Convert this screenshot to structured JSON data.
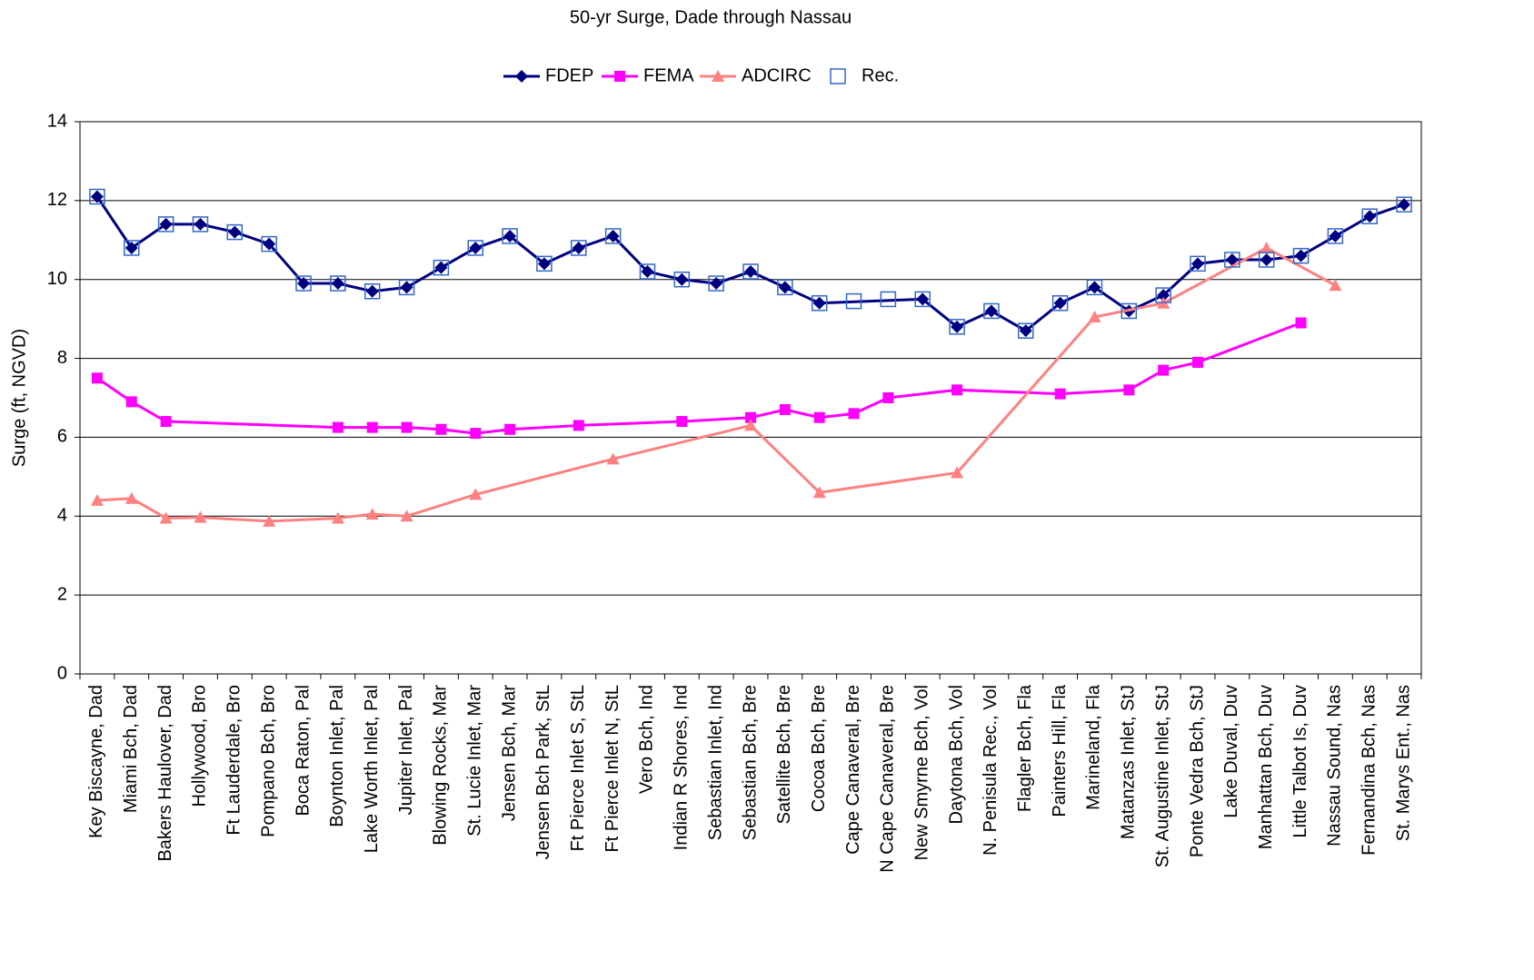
{
  "chart_data": {
    "type": "line",
    "title": "50-yr Surge, Dade through Nassau",
    "y_label": "Surge (ft, NGVD)",
    "categories": [
      "Key Biscayne, Dad",
      "Miami Bch, Dad",
      "Bakers Haulover, Dad",
      "Hollywood, Bro",
      "Ft Lauderdale, Bro",
      "Pompano Bch, Bro",
      "Boca Raton, Pal",
      "Boynton Inlet, Pal",
      "Lake Worth Inlet, Pal",
      "Jupiter Inlet, Pal",
      "Blowing Rocks, Mar",
      "St. Lucie Inlet, Mar",
      "Jensen Bch, Mar",
      "Jensen Bch Park, StL",
      "Ft Pierce Inlet S, StL",
      "Ft Pierce Inlet N, StL",
      "Vero Bch, Ind",
      "Indian R Shores, Ind",
      "Sebastian Inlet, Ind",
      "Sebastian Bch, Bre",
      "Satellite Bch, Bre",
      "Cocoa Bch, Bre",
      "Cape Canaveral, Bre",
      "N Cape Canaveral, Bre",
      "New Smyrne Bch, Vol",
      "Daytona Bch, Vol",
      "N. Penisula Rec., Vol",
      "Flagler Bch, Fla",
      "Painters Hill, Fla",
      "Marineland, Fla",
      "Matanzas Inlet, StJ",
      "St. Augustine Inlet, StJ",
      "Ponte Vedra Bch, StJ",
      "Lake Duval, Duv",
      "Manhattan Bch, Duv",
      "Little Talbot Is, Duv",
      "Nassau Sound, Nas",
      "Fernandina Bch, Nas",
      "St. Marys Ent., Nas"
    ],
    "series": [
      {
        "name": "FDEP",
        "color": "#000080",
        "marker": "diamond",
        "line": true,
        "values": [
          12.1,
          10.8,
          11.4,
          11.4,
          11.2,
          10.9,
          9.9,
          9.9,
          9.7,
          9.8,
          10.3,
          10.8,
          11.1,
          10.4,
          10.8,
          11.1,
          10.2,
          10.0,
          9.9,
          10.2,
          9.8,
          9.4,
          null,
          null,
          9.5,
          8.8,
          9.2,
          8.7,
          9.4,
          9.8,
          9.2,
          9.6,
          10.4,
          10.5,
          10.5,
          10.6,
          11.1,
          11.6,
          11.9
        ]
      },
      {
        "name": "FEMA",
        "color": "#ff00ff",
        "marker": "square",
        "line": true,
        "values": [
          7.5,
          6.9,
          6.4,
          null,
          null,
          null,
          null,
          6.25,
          6.25,
          6.25,
          6.2,
          6.1,
          6.2,
          null,
          6.3,
          null,
          null,
          6.4,
          null,
          6.5,
          6.7,
          6.5,
          6.6,
          7.0,
          null,
          7.2,
          null,
          null,
          7.1,
          null,
          7.2,
          7.7,
          7.9,
          null,
          null,
          8.9,
          null,
          null,
          null
        ]
      },
      {
        "name": "ADCIRC",
        "color": "#ff8080",
        "marker": "triangle",
        "line": true,
        "values": [
          4.4,
          4.45,
          3.95,
          3.97,
          null,
          3.87,
          null,
          3.95,
          4.05,
          4.0,
          null,
          4.55,
          null,
          null,
          null,
          5.45,
          null,
          null,
          null,
          6.3,
          null,
          4.6,
          null,
          null,
          null,
          5.1,
          null,
          null,
          null,
          9.05,
          null,
          9.4,
          null,
          null,
          10.8,
          null,
          9.85,
          null,
          null
        ]
      },
      {
        "name": "Rec.",
        "color": "#3366cc",
        "marker": "open-square",
        "line": false,
        "values": [
          12.1,
          10.8,
          11.4,
          11.4,
          11.2,
          10.9,
          9.9,
          9.9,
          9.7,
          9.8,
          10.3,
          10.8,
          11.1,
          10.4,
          10.8,
          11.1,
          10.2,
          10.0,
          9.9,
          10.2,
          9.8,
          9.4,
          9.45,
          9.5,
          9.5,
          8.8,
          9.2,
          8.7,
          9.4,
          9.8,
          9.2,
          9.6,
          10.4,
          10.5,
          10.5,
          10.6,
          11.1,
          11.6,
          11.9
        ]
      }
    ],
    "span_gaps": true,
    "ylim": [
      0,
      14
    ],
    "yticks": [
      0,
      2,
      4,
      6,
      8,
      10,
      12,
      14
    ],
    "grid": true
  }
}
